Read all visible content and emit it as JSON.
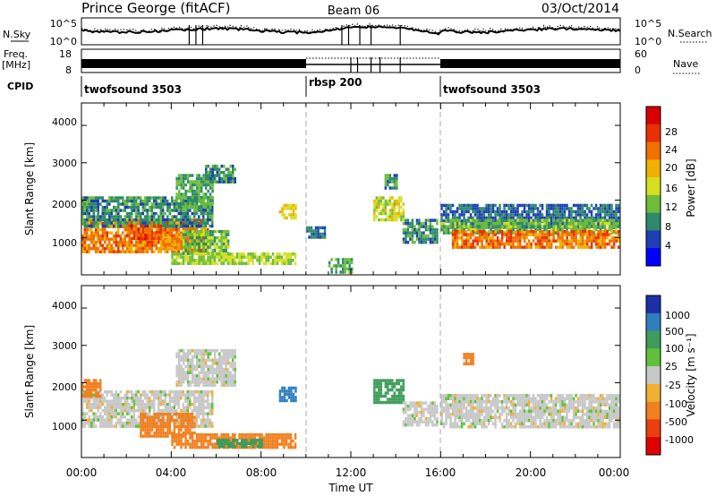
{
  "header": {
    "title": "Prince George (fitACF)",
    "beam": "Beam 06",
    "date": "03/Oct/2014"
  },
  "strips": {
    "nsky_label": "N.Sky",
    "nsky_ticks": [
      "10^5",
      "10^0"
    ],
    "nsearch_label": "N.Search",
    "nsearch_ticks": [
      "10^5",
      "10^0"
    ],
    "freq_label": "Freq.",
    "freq_unit": "[MHz]",
    "freq_ticks": [
      "18",
      "8"
    ],
    "nave_label": "Nave",
    "nave_ticks": [
      "60",
      "0"
    ],
    "cpid_label": "CPID",
    "cpid_segments": [
      {
        "name": "twofsound 3503",
        "start_h": 0,
        "end_h": 10
      },
      {
        "name": "rbsp 200",
        "start_h": 10,
        "end_h": 16
      },
      {
        "name": "twofsound 3503",
        "start_h": 16,
        "end_h": 24
      }
    ]
  },
  "xaxis": {
    "label": "Time UT",
    "ticks": [
      "00:00",
      "04:00",
      "08:00",
      "12:00",
      "16:00",
      "20:00",
      "00:00"
    ]
  },
  "power_colorbar": {
    "label": "Power [dB]",
    "ticks": [
      "28",
      "24",
      "20",
      "16",
      "12",
      "8",
      "4"
    ],
    "colors": [
      "#0000ff",
      "#1c3fb4",
      "#2e8a6a",
      "#6dbd3a",
      "#d4e020",
      "#f0b000",
      "#f07000",
      "#e83000",
      "#d80000"
    ]
  },
  "velocity_colorbar": {
    "label": "Velocity [m s⁻¹]",
    "ticks": [
      "1000",
      "500",
      "100",
      "25",
      "-25",
      "-100",
      "-500",
      "-1000"
    ],
    "colors": [
      "#1c2fa8",
      "#2f7fbe",
      "#3e9c5a",
      "#5fc13a",
      "#c8c8c8",
      "#f0b030",
      "#f08020",
      "#e84010",
      "#e00000"
    ]
  },
  "chart_data": [
    {
      "type": "heatmap",
      "name": "Power",
      "ylabel": "Slant Range [km]",
      "yticks": [
        "4000",
        "3000",
        "2000",
        "1000"
      ],
      "ylim": [
        0,
        4600
      ],
      "xlim": [
        0,
        24
      ],
      "regions": [
        {
          "t0": 0.0,
          "t1": 5.6,
          "r0": 600,
          "r1": 1500,
          "v": 26
        },
        {
          "t0": 0.0,
          "t1": 5.8,
          "r0": 1300,
          "r1": 2100,
          "v": 10
        },
        {
          "t0": 2.0,
          "t1": 3.5,
          "r0": 1000,
          "r1": 1350,
          "v": 29
        },
        {
          "t0": 3.5,
          "t1": 5.5,
          "r0": 700,
          "r1": 1100,
          "v": 24
        },
        {
          "t0": 4.5,
          "t1": 6.5,
          "r0": 600,
          "r1": 1200,
          "v": 14
        },
        {
          "t0": 4.0,
          "t1": 9.5,
          "r0": 300,
          "r1": 600,
          "v": 16
        },
        {
          "t0": 4.2,
          "t1": 5.8,
          "r0": 1800,
          "r1": 2700,
          "v": 12
        },
        {
          "t0": 5.5,
          "t1": 6.8,
          "r0": 2500,
          "r1": 2950,
          "v": 10
        },
        {
          "t0": 8.8,
          "t1": 9.5,
          "r0": 1500,
          "r1": 1900,
          "v": 20
        },
        {
          "t0": 10.0,
          "t1": 10.8,
          "r0": 1000,
          "r1": 1300,
          "v": 8
        },
        {
          "t0": 11.0,
          "t1": 12.0,
          "r0": 100,
          "r1": 450,
          "v": 12
        },
        {
          "t0": 13.0,
          "t1": 14.3,
          "r0": 1500,
          "r1": 2100,
          "v": 18
        },
        {
          "t0": 13.5,
          "t1": 14.0,
          "r0": 2300,
          "r1": 2700,
          "v": 10
        },
        {
          "t0": 14.3,
          "t1": 15.8,
          "r0": 900,
          "r1": 1500,
          "v": 10
        },
        {
          "t0": 16.0,
          "t1": 24.0,
          "r0": 1300,
          "r1": 1900,
          "v": 8
        },
        {
          "t0": 16.0,
          "t1": 24.0,
          "r0": 1100,
          "r1": 1500,
          "v": 14
        },
        {
          "t0": 16.5,
          "t1": 24.0,
          "r0": 700,
          "r1": 1200,
          "v": 26
        }
      ]
    },
    {
      "type": "heatmap",
      "name": "Velocity",
      "ylabel": "Slant Range [km]",
      "yticks": [
        "4000",
        "3000",
        "2000",
        "1000"
      ],
      "ylim": [
        0,
        4600
      ],
      "xlim": [
        0,
        24
      ],
      "regions": [
        {
          "t0": 0.0,
          "t1": 5.8,
          "r0": 800,
          "r1": 1800,
          "v": 0
        },
        {
          "t0": 0.0,
          "t1": 0.8,
          "r0": 1600,
          "r1": 2100,
          "v": -150
        },
        {
          "t0": 2.6,
          "t1": 5.0,
          "r0": 600,
          "r1": 1200,
          "v": -200
        },
        {
          "t0": 4.2,
          "t1": 6.8,
          "r0": 1900,
          "r1": 2900,
          "v": 0
        },
        {
          "t0": 4.0,
          "t1": 9.5,
          "r0": 300,
          "r1": 650,
          "v": -150
        },
        {
          "t0": 6.0,
          "t1": 8.0,
          "r0": 300,
          "r1": 500,
          "v": 150
        },
        {
          "t0": 8.8,
          "t1": 9.5,
          "r0": 1500,
          "r1": 1900,
          "v": 300
        },
        {
          "t0": 13.0,
          "t1": 14.3,
          "r0": 1500,
          "r1": 2100,
          "v": 200
        },
        {
          "t0": 14.3,
          "t1": 15.8,
          "r0": 900,
          "r1": 1500,
          "v": 0
        },
        {
          "t0": 16.0,
          "t1": 24.0,
          "r0": 800,
          "r1": 1700,
          "v": 0
        },
        {
          "t0": 17.0,
          "t1": 17.4,
          "r0": 2500,
          "r1": 2800,
          "v": -300
        }
      ]
    }
  ]
}
